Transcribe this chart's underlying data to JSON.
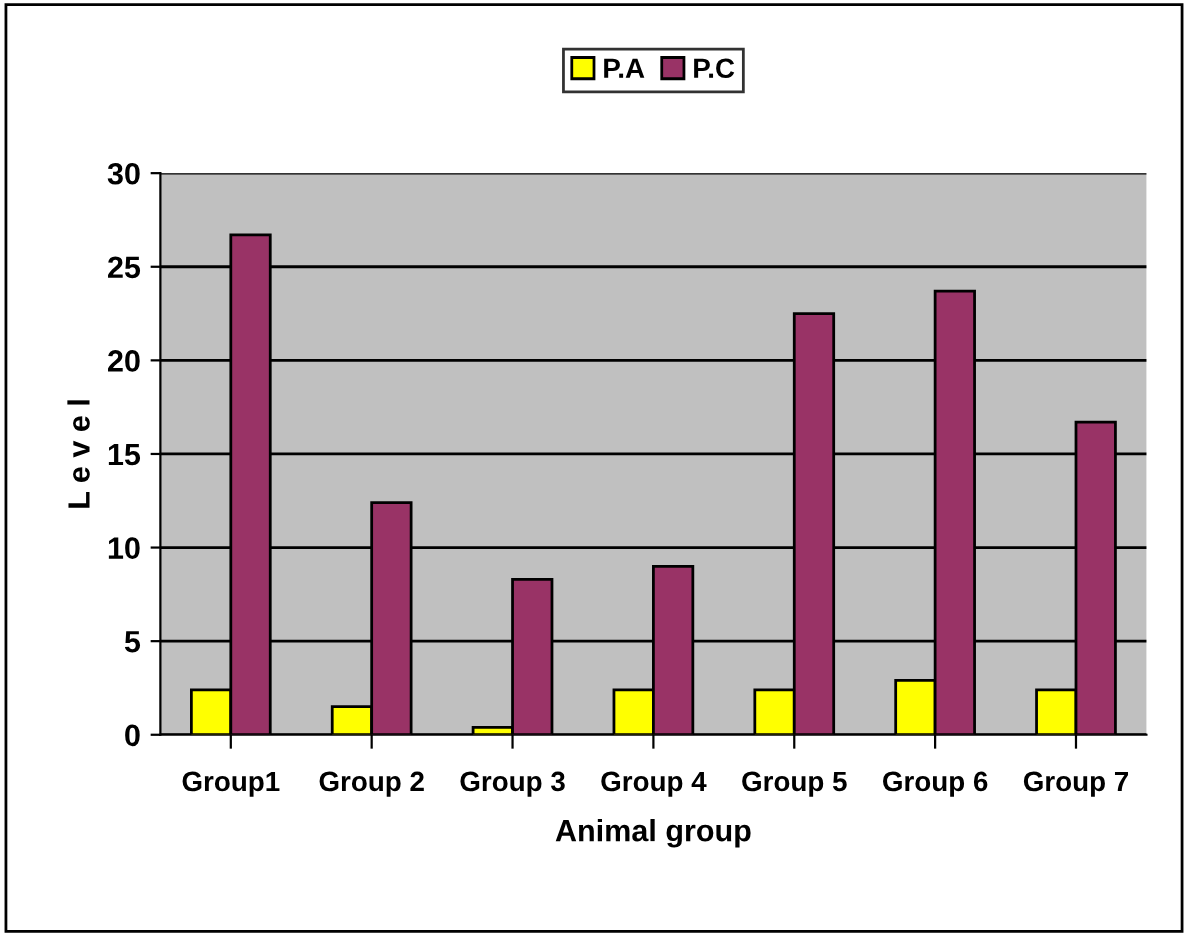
{
  "chart_data": {
    "type": "bar",
    "xlabel": "Animal group",
    "ylabel": "L e v e l",
    "categories": [
      "Group1",
      "Group 2",
      "Group 3",
      "Group 4",
      "Group 5",
      "Group 6",
      "Group 7"
    ],
    "series": [
      {
        "name": "P.A",
        "color": "#ffff00",
        "values": [
          2.4,
          1.5,
          0.4,
          2.4,
          2.4,
          2.9,
          2.4
        ]
      },
      {
        "name": "P.C",
        "color": "#993366",
        "values": [
          26.7,
          12.4,
          8.3,
          9.0,
          22.5,
          23.7,
          16.7
        ]
      }
    ],
    "ylim": [
      0,
      30
    ],
    "yticks": [
      0,
      5,
      10,
      15,
      20,
      25,
      30
    ],
    "grid": "y",
    "legend": "top"
  }
}
